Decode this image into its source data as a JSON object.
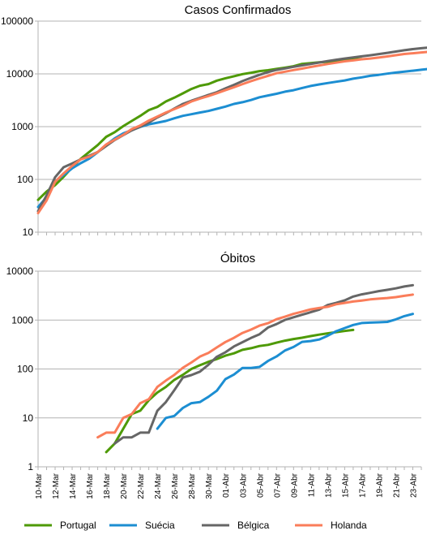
{
  "chart_data": [
    {
      "type": "line",
      "title": "Casos Confirmados",
      "yscale": "log",
      "ylim": [
        10,
        100000
      ],
      "yticks": [
        "10",
        "100",
        "1000",
        "10000",
        "100000"
      ],
      "grid": true,
      "start_date": "10-Mar",
      "series": [
        {
          "name": "Portugal",
          "color": "#4e9a06",
          "start_day": 0,
          "values": [
            41,
            59,
            78,
            112,
            169,
            245,
            331,
            448,
            642,
            785,
            1020,
            1280,
            1600,
            2060,
            2362,
            3000,
            3544,
            4268,
            5170,
            5962,
            6408,
            7443,
            8251,
            9034,
            9886,
            10524,
            11278,
            11730,
            12442,
            13141,
            13956,
            15472,
            15987,
            16585,
            16934,
            17448,
            18091,
            18841,
            19022
          ]
        },
        {
          "name": "Suécia",
          "color": "#1c8ed2",
          "start_day": 0,
          "values": [
            30,
            46,
            92,
            121,
            162,
            203,
            248,
            328,
            450,
            600,
            746,
            860,
            990,
            1103,
            1190,
            1280,
            1440,
            1600,
            1720,
            1850,
            1980,
            2180,
            2400,
            2700,
            2900,
            3200,
            3600,
            3900,
            4200,
            4600,
            4900,
            5400,
            5900,
            6300,
            6700,
            7100,
            7500,
            8100,
            8600,
            9200,
            9600,
            10100,
            10600,
            11000,
            11500,
            12000,
            12500
          ]
        },
        {
          "name": "Bélgica",
          "color": "#666666",
          "start_day": 0,
          "values": [
            25,
            50,
            110,
            170,
            200,
            240,
            280,
            330,
            430,
            560,
            690,
            850,
            1000,
            1200,
            1500,
            1800,
            2200,
            2700,
            3100,
            3500,
            4000,
            4500,
            5300,
            6200,
            7300,
            8400,
            9600,
            10800,
            11900,
            12700,
            13600,
            14500,
            15400,
            16400,
            17500,
            18500,
            19500,
            20500,
            21500,
            22500,
            23700,
            25000,
            26500,
            28000,
            29500,
            30600,
            31600,
            33500,
            34800,
            36000
          ]
        },
        {
          "name": "Holanda",
          "color": "#fa7d5a",
          "start_day": 0,
          "values": [
            23,
            40,
            90,
            130,
            180,
            240,
            270,
            330,
            460,
            570,
            700,
            900,
            1050,
            1300,
            1550,
            1850,
            2150,
            2500,
            3000,
            3400,
            3800,
            4300,
            4900,
            5600,
            6400,
            7300,
            8200,
            9200,
            10300,
            11000,
            11800,
            12600,
            13500,
            14400,
            15400,
            16300,
            17300,
            18000,
            18900,
            19500,
            20400,
            21400,
            22600,
            23800,
            24600,
            25500,
            26300,
            27100,
            28100,
            29000
          ]
        }
      ]
    },
    {
      "type": "line",
      "title": "Óbitos",
      "yscale": "log",
      "ylim": [
        1,
        10000
      ],
      "yticks": [
        "1",
        "10",
        "100",
        "1000",
        "10000"
      ],
      "grid": true,
      "xticks": [
        "10-Mar",
        "12-Mar",
        "14-Mar",
        "16-Mar",
        "18-Mar",
        "20-Mar",
        "22-Mar",
        "24-Mar",
        "26-Mar",
        "28-Mar",
        "30-Mar",
        "01-Abr",
        "03-Abr",
        "05-Abr",
        "07-Abr",
        "09-Abr",
        "11-Abr",
        "13-Abr",
        "15-Abr",
        "17-Abr",
        "19-Abr",
        "21-Abr",
        "23-Abr"
      ],
      "series": [
        {
          "name": "Portugal",
          "color": "#4e9a06",
          "start_day": 8,
          "values": [
            2,
            3,
            6,
            12,
            14,
            23,
            33,
            43,
            60,
            76,
            100,
            119,
            140,
            160,
            187,
            209,
            246,
            266,
            295,
            311,
            345,
            380,
            409,
            435,
            470,
            504,
            535,
            567,
            599,
            629
          ]
        },
        {
          "name": "Suécia",
          "color": "#1c8ed2",
          "start_day": 14,
          "values": [
            6,
            10,
            11,
            16,
            20,
            21,
            27,
            36,
            62,
            77,
            105,
            105,
            110,
            146,
            180,
            239,
            282,
            358,
            373,
            401,
            477,
            591,
            687,
            793,
            870,
            887,
            899,
            919,
            1033,
            1203,
            1333
          ]
        },
        {
          "name": "Bélgica",
          "color": "#666666",
          "start_day": 9,
          "values": [
            3,
            4,
            4,
            5,
            5,
            14,
            21,
            37,
            67,
            75,
            88,
            122,
            178,
            220,
            289,
            353,
            431,
            513,
            705,
            828,
            1011,
            1143,
            1283,
            1447,
            1632,
            2035,
            2240,
            2523,
            3019,
            3346,
            3600,
            3903,
            4157,
            4440,
            4857,
            5163
          ]
        },
        {
          "name": "Holanda",
          "color": "#fa7d5a",
          "start_day": 7,
          "values": [
            4,
            5,
            5,
            10,
            12,
            20,
            24,
            43,
            58,
            76,
            106,
            136,
            179,
            213,
            276,
            356,
            434,
            546,
            639,
            771,
            864,
            1039,
            1173,
            1339,
            1487,
            1651,
            1766,
            1867,
            2101,
            2248,
            2396,
            2511,
            2643,
            2737,
            2823,
            2945,
            3134,
            3315
          ]
        }
      ]
    }
  ],
  "legend": [
    {
      "label": "Portugal",
      "color": "#4e9a06"
    },
    {
      "label": "Suécia",
      "color": "#1c8ed2"
    },
    {
      "label": "Bélgica",
      "color": "#666666"
    },
    {
      "label": "Holanda",
      "color": "#fa7d5a"
    }
  ]
}
